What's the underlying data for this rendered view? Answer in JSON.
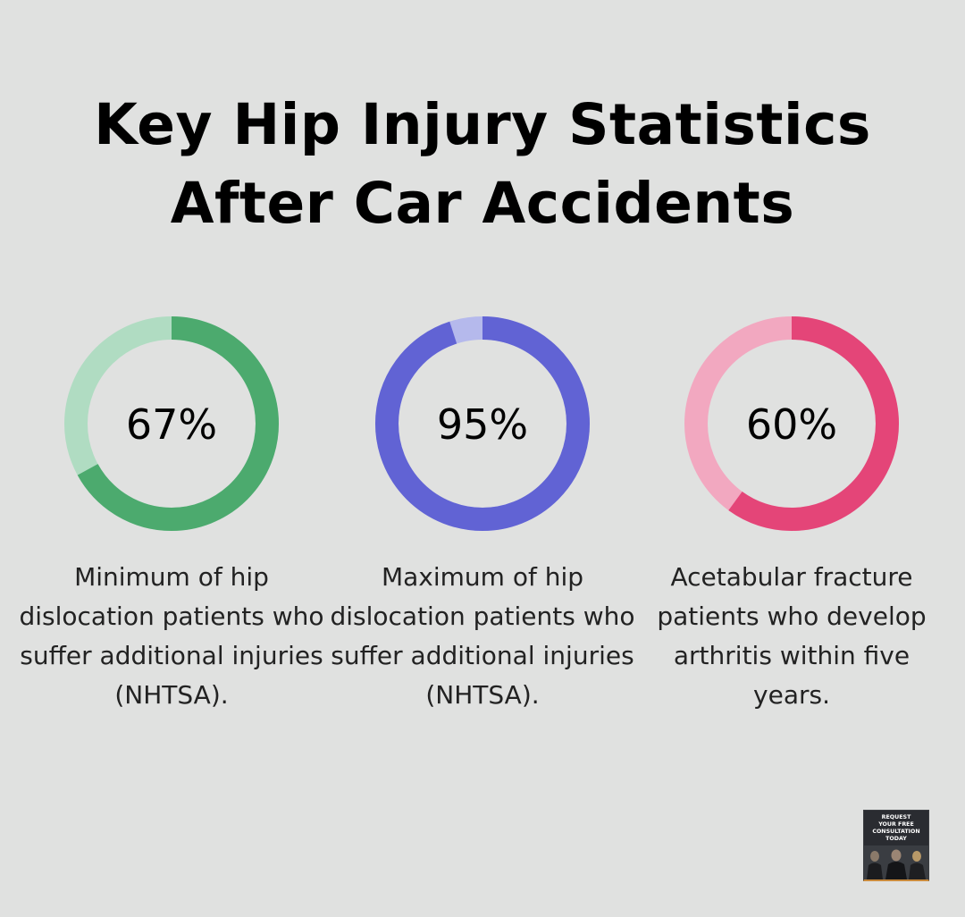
{
  "title": {
    "line1": "Key Hip Injury Statistics",
    "line2": "After Car Accidents"
  },
  "chart_data": {
    "type": "donut",
    "title": "Key Hip Injury Statistics After Car Accidents",
    "items": [
      {
        "value": 67,
        "label": "67%",
        "description": "Minimum of hip dislocation patients who suffer additional injuries (NHTSA).",
        "color": "#4caa6e",
        "track_color": "#b0dcc2"
      },
      {
        "value": 95,
        "label": "95%",
        "description": "Maximum of hip dislocation patients who suffer additional injuries (NHTSA).",
        "color": "#6163d4",
        "track_color": "#b5b9ec"
      },
      {
        "value": 60,
        "label": "60%",
        "description": "Acetabular fracture patients who develop arthritis within five years.",
        "color": "#e44578",
        "track_color": "#f2a8c0"
      }
    ]
  },
  "cta": {
    "text": "REQUEST\nYOUR FREE\nCONSULTATION\nTODAY",
    "accent": "#c98a3c"
  }
}
